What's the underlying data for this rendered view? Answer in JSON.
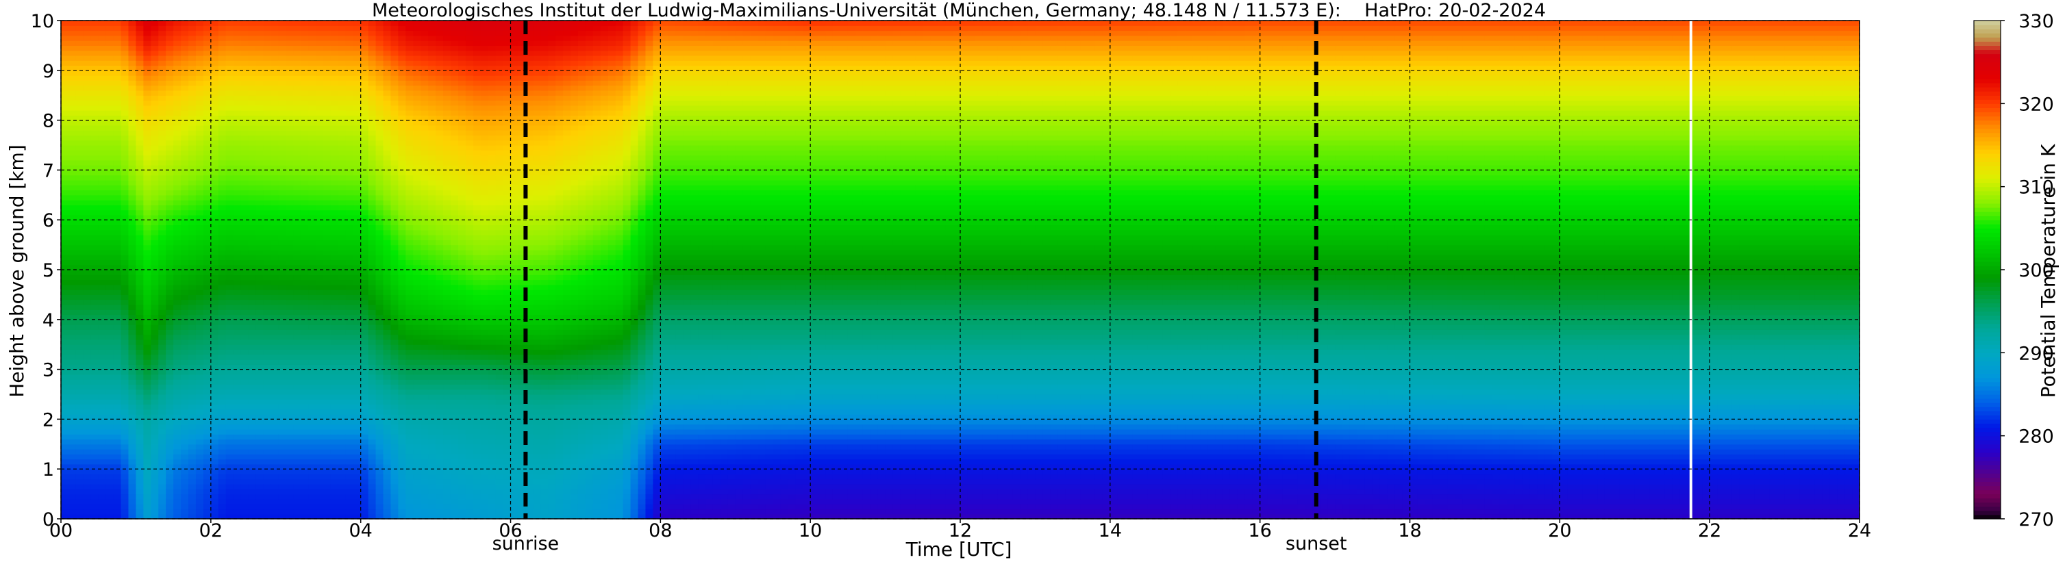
{
  "chart_data": {
    "type": "heatmap",
    "title": "Meteorologisches Institut der Ludwig-Maximilians-Universität (München, Germany; 48.148 N / 11.573 E):    HatPro: 20-02-2024",
    "xlabel": "Time [UTC]",
    "ylabel": "Height above ground [km]",
    "xlim": [
      0,
      24
    ],
    "ylim": [
      0,
      10
    ],
    "x_ticks": [
      "00",
      "02",
      "04",
      "06",
      "08",
      "10",
      "12",
      "14",
      "16",
      "18",
      "20",
      "22",
      "24"
    ],
    "y_ticks": [
      "0",
      "1",
      "2",
      "3",
      "4",
      "5",
      "6",
      "7",
      "8",
      "9",
      "10"
    ],
    "grid": true,
    "colorbar": {
      "label": "Potential Temperature in K",
      "range": [
        270,
        330
      ],
      "ticks": [
        "270",
        "280",
        "290",
        "300",
        "310",
        "320",
        "330"
      ],
      "colors": [
        [
          270,
          "#000000"
        ],
        [
          271,
          "#3a0044"
        ],
        [
          273,
          "#7a0058"
        ],
        [
          276,
          "#4a009a"
        ],
        [
          278,
          "#2a00c8"
        ],
        [
          281,
          "#0018e6"
        ],
        [
          284,
          "#0060e8"
        ],
        [
          287,
          "#0096dc"
        ],
        [
          290,
          "#00a8c0"
        ],
        [
          293,
          "#00a898"
        ],
        [
          296,
          "#00a050"
        ],
        [
          299,
          "#009a00"
        ],
        [
          302,
          "#00c400"
        ],
        [
          305,
          "#00e800"
        ],
        [
          308,
          "#88f000"
        ],
        [
          311,
          "#dcf000"
        ],
        [
          314,
          "#ffd000"
        ],
        [
          317,
          "#ff9000"
        ],
        [
          320,
          "#ff3c00"
        ],
        [
          323,
          "#e40000"
        ],
        [
          326,
          "#d40010"
        ],
        [
          328,
          "#c0a050"
        ],
        [
          330,
          "#d0d0a0"
        ]
      ]
    },
    "heights_km": [
      0,
      0.5,
      1,
      1.5,
      2,
      2.5,
      3,
      3.5,
      4,
      4.5,
      5,
      5.5,
      6,
      6.5,
      7,
      7.5,
      8,
      8.5,
      9,
      9.5,
      10
    ],
    "time_profiles": [
      {
        "t": 0.0,
        "theta": [
          281.0,
          281.5,
          282.5,
          285.5,
          289.0,
          291.5,
          293.5,
          294.5,
          296.0,
          298.0,
          300.0,
          302.0,
          304.0,
          306.0,
          307.5,
          308.5,
          310.0,
          312.0,
          314.5,
          317.5,
          320.0
        ]
      },
      {
        "t": 0.8,
        "theta": [
          281.0,
          281.5,
          282.5,
          285.5,
          289.0,
          291.5,
          293.5,
          294.5,
          296.0,
          298.0,
          300.0,
          302.0,
          304.0,
          306.0,
          307.5,
          308.5,
          310.0,
          312.0,
          314.5,
          317.5,
          320.0
        ]
      },
      {
        "t": 1.15,
        "theta": [
          288.0,
          289.0,
          290.0,
          291.0,
          292.0,
          294.5,
          297.0,
          299.5,
          301.0,
          302.5,
          304.0,
          305.5,
          307.0,
          308.5,
          310.0,
          311.5,
          313.0,
          315.0,
          318.0,
          321.5,
          324.0
        ]
      },
      {
        "t": 1.5,
        "theta": [
          284.0,
          284.5,
          285.5,
          287.5,
          290.0,
          292.0,
          294.0,
          295.5,
          297.5,
          299.5,
          301.5,
          303.5,
          305.5,
          307.5,
          309.0,
          310.5,
          312.0,
          314.0,
          316.5,
          319.5,
          322.0
        ]
      },
      {
        "t": 2.2,
        "theta": [
          281.0,
          281.5,
          282.5,
          285.0,
          288.5,
          291.0,
          293.0,
          294.5,
          296.0,
          298.0,
          300.0,
          302.0,
          304.0,
          306.0,
          307.5,
          308.5,
          310.0,
          312.0,
          314.5,
          317.5,
          320.0
        ]
      },
      {
        "t": 4.0,
        "theta": [
          281.0,
          281.5,
          282.5,
          285.0,
          288.5,
          291.0,
          293.0,
          294.5,
          296.5,
          298.5,
          300.5,
          302.5,
          304.5,
          306.5,
          308.0,
          309.0,
          310.5,
          312.5,
          315.0,
          318.0,
          320.5
        ]
      },
      {
        "t": 4.6,
        "theta": [
          287.0,
          288.0,
          289.0,
          290.0,
          291.5,
          293.5,
          296.0,
          298.5,
          301.0,
          303.0,
          305.0,
          306.5,
          308.0,
          309.5,
          311.0,
          312.5,
          314.0,
          316.0,
          318.5,
          321.5,
          323.5
        ]
      },
      {
        "t": 5.6,
        "theta": [
          288.0,
          289.0,
          290.0,
          291.0,
          292.0,
          293.5,
          296.0,
          299.5,
          302.5,
          305.0,
          307.0,
          308.5,
          310.0,
          311.5,
          313.0,
          314.5,
          316.0,
          318.0,
          320.5,
          323.0,
          325.0
        ]
      },
      {
        "t": 6.5,
        "theta": [
          289.0,
          289.5,
          290.5,
          291.5,
          292.5,
          294.0,
          297.0,
          300.0,
          302.5,
          304.5,
          306.5,
          308.0,
          309.5,
          311.0,
          312.5,
          314.0,
          315.5,
          317.5,
          320.0,
          322.5,
          324.5
        ]
      },
      {
        "t": 7.5,
        "theta": [
          287.0,
          287.5,
          288.5,
          290.0,
          291.5,
          293.5,
          296.0,
          298.5,
          301.0,
          303.0,
          304.5,
          306.0,
          307.5,
          309.0,
          310.5,
          312.0,
          313.5,
          315.5,
          318.0,
          321.0,
          323.0
        ]
      },
      {
        "t": 8.0,
        "theta": [
          278.0,
          279.5,
          281.0,
          283.0,
          287.0,
          290.0,
          292.0,
          293.5,
          295.0,
          297.0,
          299.0,
          301.0,
          303.0,
          305.0,
          306.5,
          307.5,
          309.0,
          311.0,
          313.5,
          316.5,
          319.5
        ]
      },
      {
        "t": 10.0,
        "theta": [
          277.5,
          279.0,
          280.5,
          282.5,
          286.5,
          289.5,
          291.5,
          293.5,
          295.0,
          297.0,
          299.0,
          301.0,
          303.0,
          305.0,
          306.5,
          307.5,
          309.0,
          311.0,
          313.5,
          316.5,
          320.5
        ]
      },
      {
        "t": 16.0,
        "theta": [
          277.5,
          279.0,
          280.5,
          282.5,
          286.5,
          289.5,
          291.5,
          293.5,
          295.0,
          297.0,
          299.0,
          301.0,
          303.0,
          305.0,
          306.5,
          307.5,
          309.0,
          311.0,
          313.5,
          316.5,
          319.5
        ]
      },
      {
        "t": 20.0,
        "theta": [
          278.0,
          279.5,
          281.0,
          283.5,
          287.0,
          290.0,
          292.0,
          293.5,
          295.5,
          297.5,
          299.0,
          301.0,
          303.0,
          305.0,
          306.5,
          307.5,
          309.0,
          311.0,
          313.5,
          316.5,
          319.5
        ]
      },
      {
        "t": 24.0,
        "theta": [
          278.0,
          279.5,
          281.0,
          283.5,
          287.0,
          290.0,
          292.0,
          293.5,
          295.5,
          297.5,
          299.0,
          301.0,
          303.0,
          305.0,
          306.5,
          307.5,
          309.0,
          311.0,
          313.5,
          316.5,
          319.5
        ]
      }
    ],
    "annotations": [
      {
        "label": "sunrise",
        "x": 6.2,
        "style": "dashed"
      },
      {
        "label": "sunset",
        "x": 16.75,
        "style": "dashed"
      }
    ],
    "missing_data_lines": [
      {
        "x": 21.75,
        "color": "#ffffff"
      }
    ]
  }
}
